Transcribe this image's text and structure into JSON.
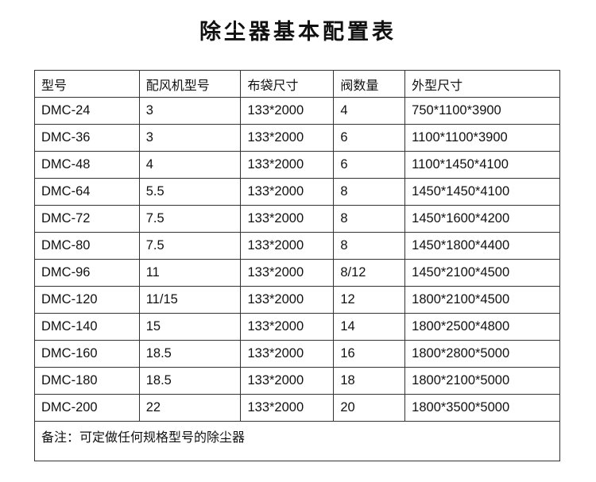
{
  "title": "除尘器基本配置表",
  "table": {
    "headers": [
      "型号",
      "配风机型号",
      "布袋尺寸",
      "阀数量",
      "外型尺寸"
    ],
    "rows": [
      [
        "DMC-24",
        "3",
        "133*2000",
        "4",
        "750*1100*3900"
      ],
      [
        "DMC-36",
        "3",
        "133*2000",
        "6",
        "1100*1100*3900"
      ],
      [
        "DMC-48",
        "4",
        "133*2000",
        "6",
        "1100*1450*4100"
      ],
      [
        "DMC-64",
        "5.5",
        "133*2000",
        "8",
        "1450*1450*4100"
      ],
      [
        "DMC-72",
        "7.5",
        "133*2000",
        "8",
        "1450*1600*4200"
      ],
      [
        "DMC-80",
        "7.5",
        "133*2000",
        "8",
        "1450*1800*4400"
      ],
      [
        "DMC-96",
        "11",
        "133*2000",
        "8/12",
        "1450*2100*4500"
      ],
      [
        "DMC-120",
        "11/15",
        "133*2000",
        "12",
        "1800*2100*4500"
      ],
      [
        "DMC-140",
        "15",
        "133*2000",
        "14",
        "1800*2500*4800"
      ],
      [
        "DMC-160",
        "18.5",
        "133*2000",
        "16",
        "1800*2800*5000"
      ],
      [
        "DMC-180",
        "18.5",
        "133*2000",
        "18",
        "1800*2100*5000"
      ],
      [
        "DMC-200",
        "22",
        "133*2000",
        "20",
        "1800*3500*5000"
      ]
    ],
    "note": "备注：可定做任何规格型号的除尘器"
  }
}
